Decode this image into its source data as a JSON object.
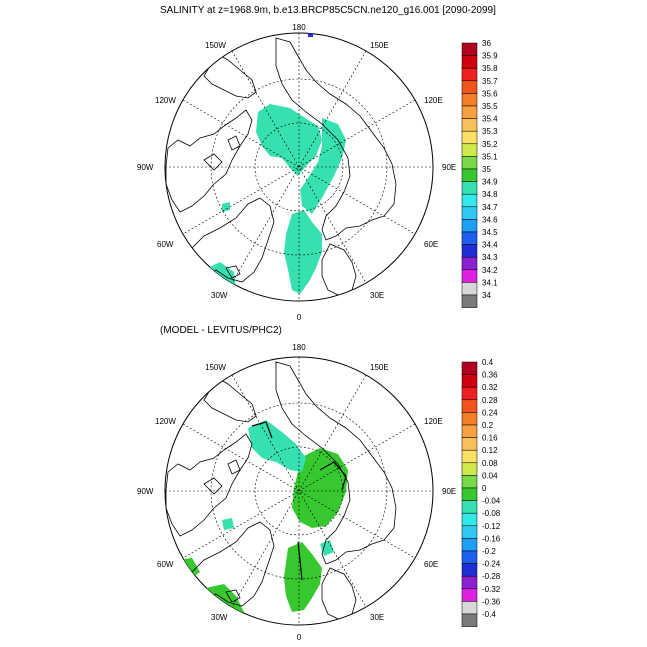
{
  "top_panel": {
    "title": "SALINITY at z=1968.9m, b.e13.BRCP85C5CN.ne120_g16.001 [2090-2099]",
    "lon_labels": [
      "180",
      "150E",
      "120E",
      "90E",
      "60E",
      "30E",
      "0",
      "30W",
      "60W",
      "90W",
      "120W",
      "150W"
    ],
    "colorbar": {
      "labels": [
        "36",
        "35.9",
        "35.8",
        "35.7",
        "35.6",
        "35.5",
        "35.4",
        "35.3",
        "35.2",
        "35.1",
        "35",
        "34.9",
        "34.8",
        "34.7",
        "34.6",
        "34.5",
        "34.4",
        "34.3",
        "34.2",
        "34.1",
        "34"
      ],
      "colors": [
        "#b2001f",
        "#d10010",
        "#ef2020",
        "#f2551c",
        "#f47d28",
        "#f7a040",
        "#f8c05a",
        "#fae064",
        "#cfe84a",
        "#78d94a",
        "#36c82e",
        "#36e0b0",
        "#33e8e8",
        "#2ec8f2",
        "#1e9ef5",
        "#1e5ef0",
        "#1f2fd8",
        "#8a20d0",
        "#e020e0",
        "#d8d8d8"
      ],
      "last_color": "#7a7a7a"
    }
  },
  "bottom_panel": {
    "title": "(MODEL - LEVITUS/PHC2)",
    "lon_labels": [
      "180",
      "150E",
      "120E",
      "90E",
      "60E",
      "30E",
      "0",
      "30W",
      "60W",
      "90W",
      "120W",
      "150W"
    ],
    "colorbar": {
      "labels": [
        "0.4",
        "0.36",
        "0.32",
        "0.28",
        "0.24",
        "0.2",
        "0.16",
        "0.12",
        "0.08",
        "0.04",
        "0",
        "-0.04",
        "-0.08",
        "-0.12",
        "-0.16",
        "-0.2",
        "-0.24",
        "-0.28",
        "-0.32",
        "-0.36",
        "-0.4"
      ],
      "colors": [
        "#b2001f",
        "#d10010",
        "#ef2020",
        "#f2551c",
        "#f47d28",
        "#f7a040",
        "#f8c05a",
        "#fae064",
        "#cfe84a",
        "#78d94a",
        "#36c82e",
        "#36e0b0",
        "#33e8e8",
        "#2ec8f2",
        "#1e9ef5",
        "#1e5ef0",
        "#1f2fd8",
        "#8a20d0",
        "#e020e0",
        "#d8d8d8"
      ],
      "last_color": "#7a7a7a"
    }
  }
}
